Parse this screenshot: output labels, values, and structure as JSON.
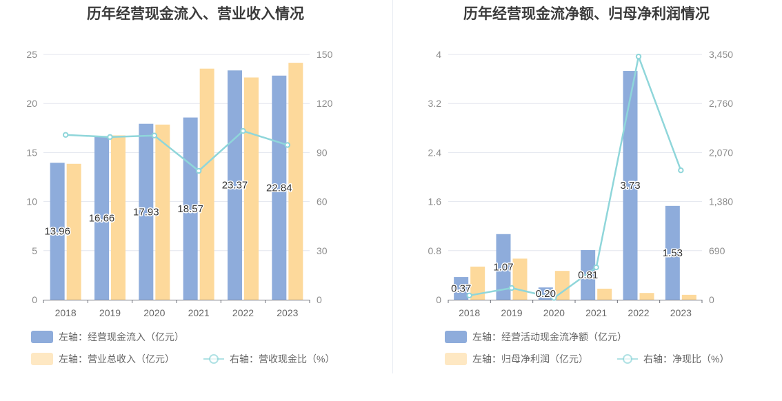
{
  "charts": [
    {
      "id": "left",
      "title": "历年经营现金流入、营业收入情况",
      "chart_data": {
        "type": "bar",
        "categories": [
          "2018",
          "2019",
          "2020",
          "2021",
          "2022",
          "2023"
        ],
        "series": [
          {
            "name": "左轴：经营现金流入（亿元）",
            "type": "bar",
            "axis": "left",
            "color": "#8eacdb",
            "values": [
              13.96,
              16.66,
              17.93,
              18.57,
              23.37,
              22.84
            ],
            "labels": [
              "13.96",
              "16.66",
              "17.93",
              "18.57",
              "23.37",
              "22.84"
            ]
          },
          {
            "name": "左轴：营业总收入（亿元）",
            "type": "bar",
            "axis": "left",
            "color": "#fdd99b",
            "values": [
              13.85,
              16.75,
              17.85,
              23.55,
              22.65,
              24.15
            ]
          },
          {
            "name": "右轴：营收现金比（%）",
            "type": "line",
            "axis": "right",
            "color": "#8fd6da",
            "values": [
              100.8,
              99.5,
              100.4,
              78.8,
              103.2,
              94.6
            ]
          }
        ],
        "yleft": {
          "min": 0,
          "max": 25,
          "ticks": [
            "0",
            "5",
            "10",
            "15",
            "20",
            "25"
          ]
        },
        "yright": {
          "min": 0,
          "max": 150,
          "ticks": [
            "0",
            "30",
            "60",
            "90",
            "120",
            "150"
          ]
        },
        "grid": true,
        "legend": "bottom"
      }
    },
    {
      "id": "right",
      "title": "历年经营现金流净额、归母净利润情况",
      "chart_data": {
        "type": "bar",
        "categories": [
          "2018",
          "2019",
          "2020",
          "2021",
          "2022",
          "2023"
        ],
        "series": [
          {
            "name": "左轴：经营活动现金流净额（亿元）",
            "type": "bar",
            "axis": "left",
            "color": "#8eacdb",
            "values": [
              0.37,
              1.07,
              0.2,
              0.81,
              3.73,
              1.53
            ],
            "labels": [
              "0.37",
              "1.07",
              "0.20",
              "0.81",
              "3.73",
              "1.53"
            ]
          },
          {
            "name": "左轴：归母净利润（亿元）",
            "type": "bar",
            "axis": "left",
            "color": "#fdd99b",
            "values": [
              0.54,
              0.67,
              0.47,
              0.18,
              0.11,
              0.08
            ]
          },
          {
            "name": "右轴：净现比（%）",
            "type": "line",
            "axis": "right",
            "color": "#8fd6da",
            "values": [
              60,
              165,
              25,
              455,
              3420,
              1820
            ]
          }
        ],
        "yleft": {
          "min": 0,
          "max": 4,
          "ticks": [
            "0",
            "0.8",
            "1.6",
            "2.4",
            "3.2",
            "4"
          ]
        },
        "yright": {
          "min": 0,
          "max": 3450,
          "ticks": [
            "0",
            "690",
            "1,380",
            "2,070",
            "2,760",
            "3,450"
          ]
        },
        "grid": true,
        "legend": "bottom"
      }
    }
  ]
}
